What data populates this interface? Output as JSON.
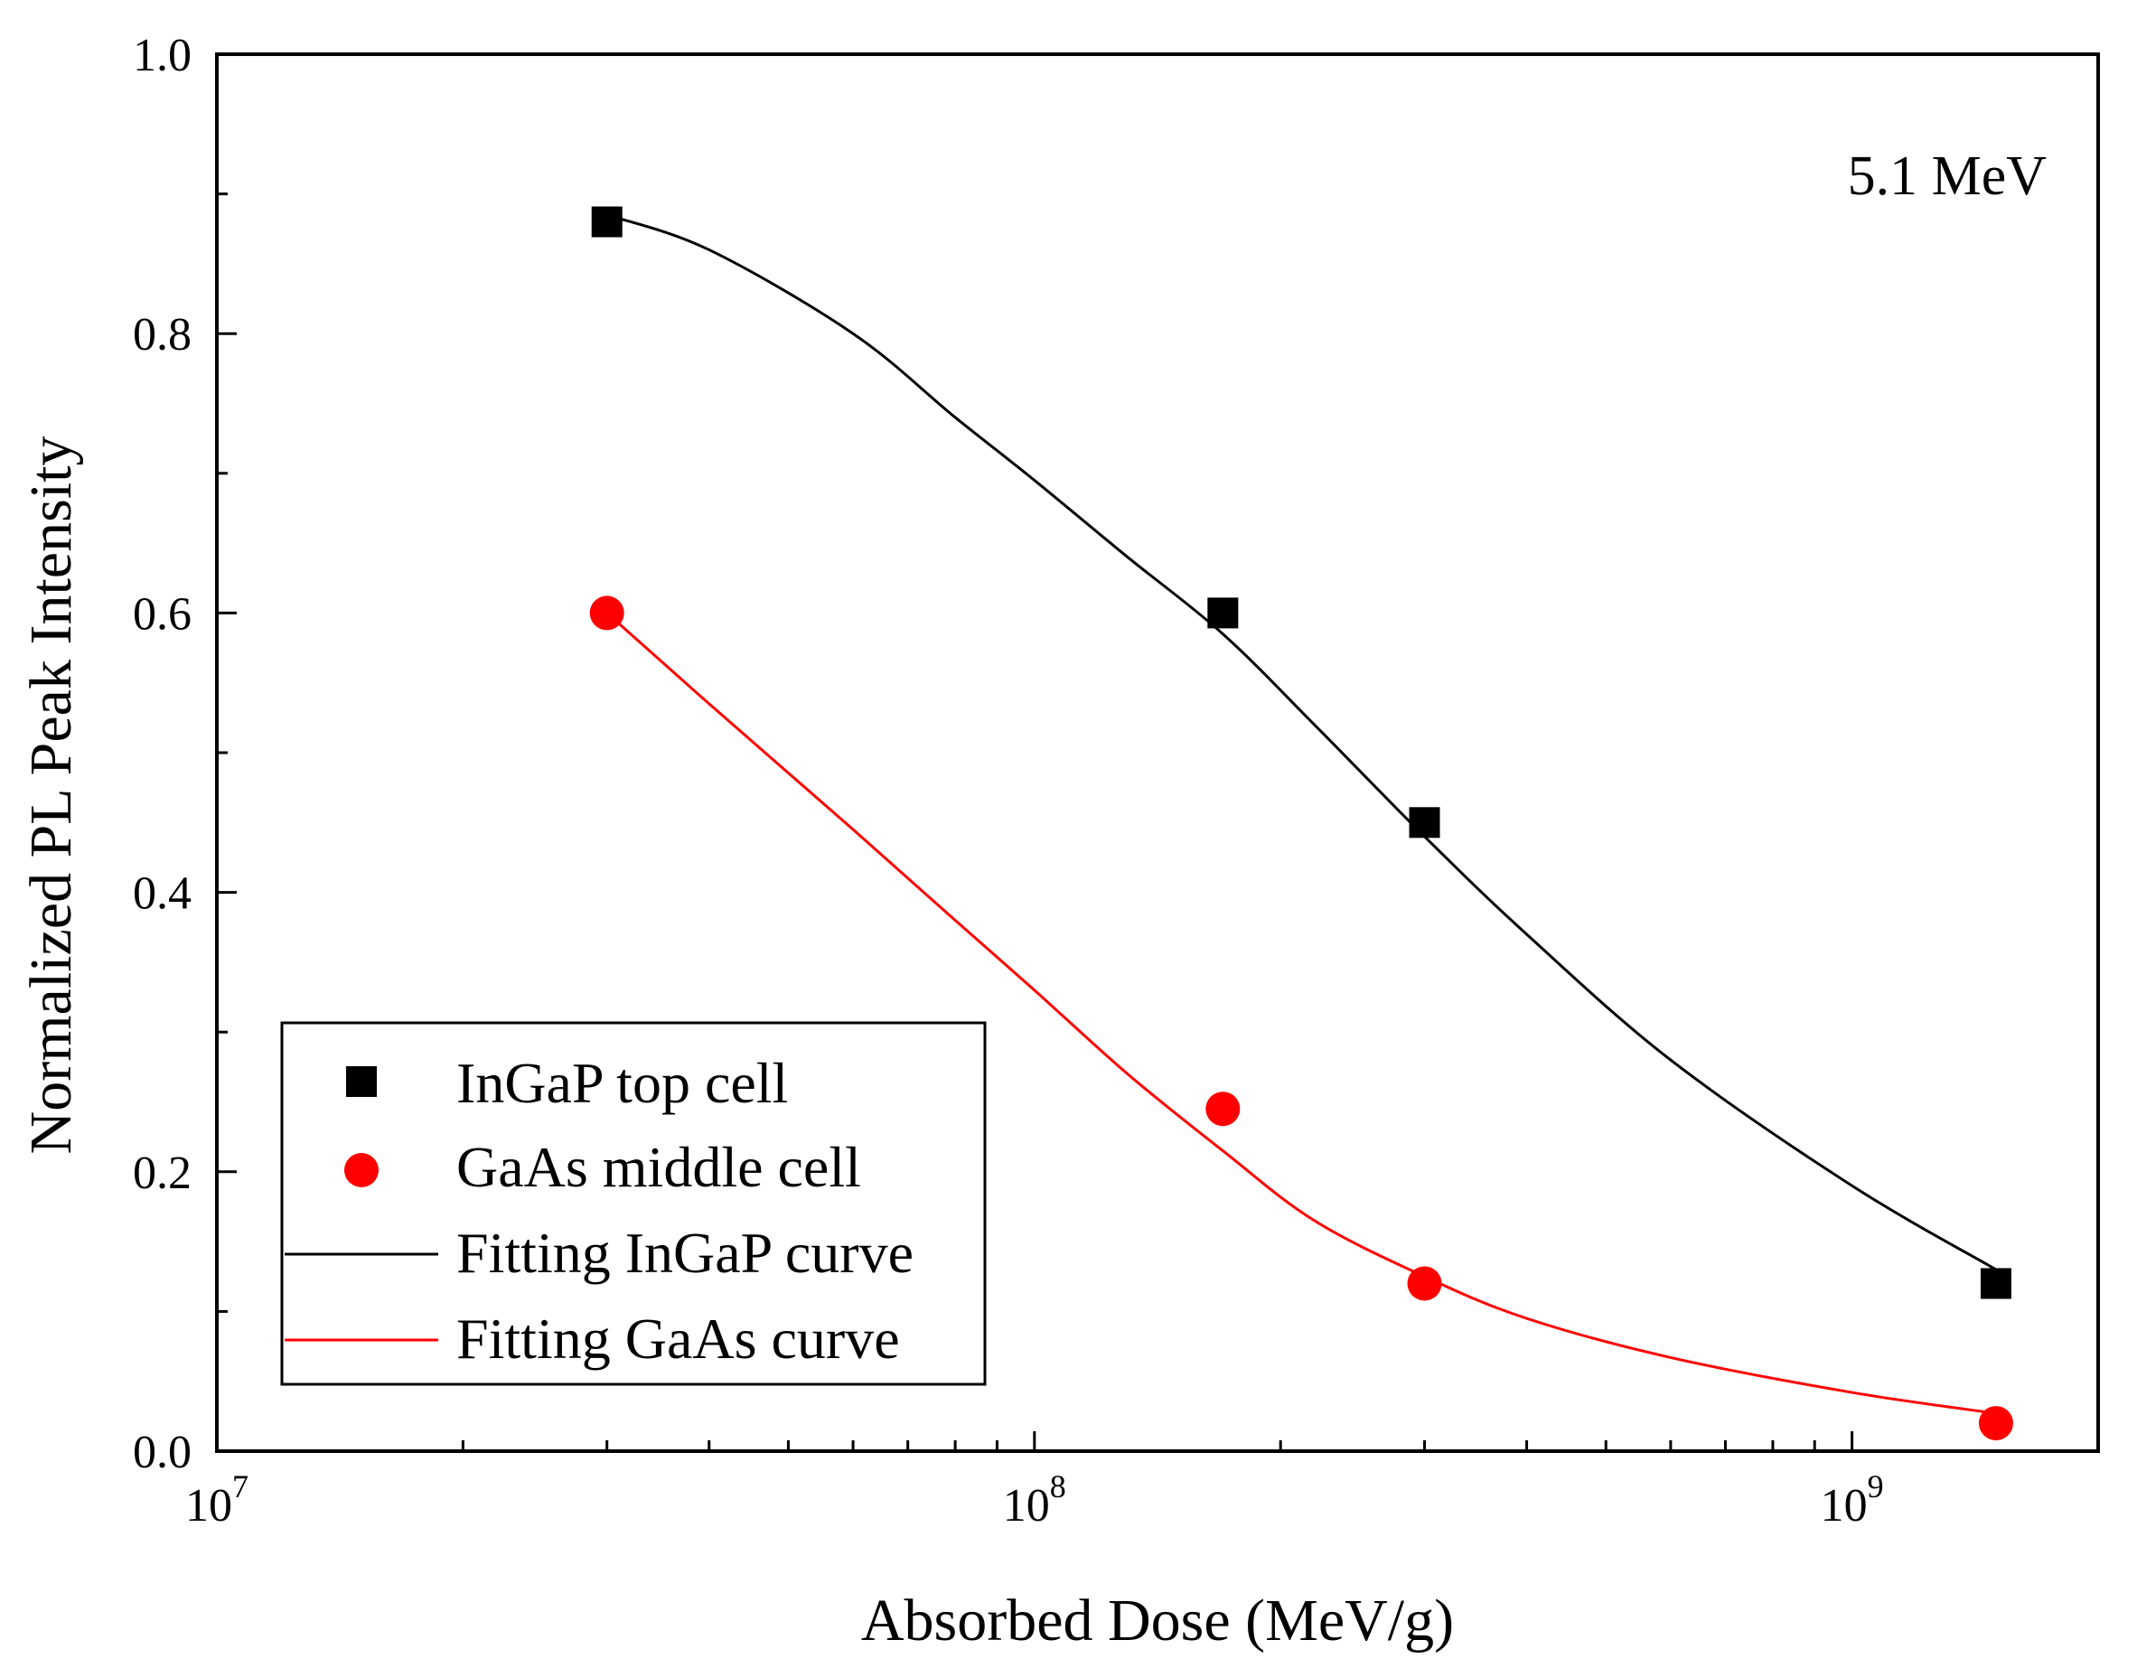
{
  "chart_data": {
    "type": "scatter",
    "title": "",
    "xlabel": "Absorbed Dose (MeV/g)",
    "ylabel": "Normalized PL Peak Intensity",
    "xscale": "log",
    "xlim": [
      10000000,
      2000000000
    ],
    "ylim": [
      0,
      1.0
    ],
    "x_ticks": [
      {
        "value": 10000000,
        "base": "10",
        "exp": "7"
      },
      {
        "value": 100000000,
        "base": "10",
        "exp": "8"
      },
      {
        "value": 1000000000,
        "base": "10",
        "exp": "9"
      }
    ],
    "y_ticks": [
      {
        "value": 0.0,
        "label": "0.0"
      },
      {
        "value": 0.2,
        "label": "0.2"
      },
      {
        "value": 0.4,
        "label": "0.4"
      },
      {
        "value": 0.6,
        "label": "0.6"
      },
      {
        "value": 0.8,
        "label": "0.8"
      },
      {
        "value": 1.0,
        "label": "1.0"
      }
    ],
    "annotation": "5.1 MeV",
    "legend_position": "bottom-left",
    "series": [
      {
        "name": "InGaP top cell",
        "kind": "points",
        "marker": "square",
        "color": "#000000",
        "points": [
          {
            "x": 30000000,
            "y": 0.88
          },
          {
            "x": 170000000,
            "y": 0.6
          },
          {
            "x": 300000000,
            "y": 0.45
          },
          {
            "x": 1500000000,
            "y": 0.12
          }
        ]
      },
      {
        "name": "GaAs middle cell",
        "kind": "points",
        "marker": "circle",
        "color": "#ff0000",
        "points": [
          {
            "x": 30000000,
            "y": 0.6
          },
          {
            "x": 170000000,
            "y": 0.245
          },
          {
            "x": 300000000,
            "y": 0.12
          },
          {
            "x": 1500000000,
            "y": 0.02
          }
        ]
      },
      {
        "name": "Fitting InGaP curve",
        "kind": "line",
        "color": "#000000",
        "points": [
          {
            "x": 30000000,
            "y": 0.885
          },
          {
            "x": 40000000,
            "y": 0.86
          },
          {
            "x": 60000000,
            "y": 0.8
          },
          {
            "x": 80000000,
            "y": 0.74
          },
          {
            "x": 100000000,
            "y": 0.695
          },
          {
            "x": 130000000,
            "y": 0.64
          },
          {
            "x": 170000000,
            "y": 0.585
          },
          {
            "x": 220000000,
            "y": 0.52
          },
          {
            "x": 300000000,
            "y": 0.44
          },
          {
            "x": 400000000,
            "y": 0.37
          },
          {
            "x": 600000000,
            "y": 0.28
          },
          {
            "x": 1000000000,
            "y": 0.19
          },
          {
            "x": 1500000000,
            "y": 0.13
          }
        ]
      },
      {
        "name": "Fitting GaAs curve",
        "kind": "line",
        "color": "#ff0000",
        "points": [
          {
            "x": 30000000,
            "y": 0.6
          },
          {
            "x": 40000000,
            "y": 0.535
          },
          {
            "x": 60000000,
            "y": 0.445
          },
          {
            "x": 80000000,
            "y": 0.38
          },
          {
            "x": 100000000,
            "y": 0.33
          },
          {
            "x": 130000000,
            "y": 0.27
          },
          {
            "x": 170000000,
            "y": 0.215
          },
          {
            "x": 220000000,
            "y": 0.165
          },
          {
            "x": 300000000,
            "y": 0.125
          },
          {
            "x": 400000000,
            "y": 0.095
          },
          {
            "x": 600000000,
            "y": 0.067
          },
          {
            "x": 1000000000,
            "y": 0.042
          },
          {
            "x": 1500000000,
            "y": 0.027
          }
        ]
      }
    ]
  }
}
